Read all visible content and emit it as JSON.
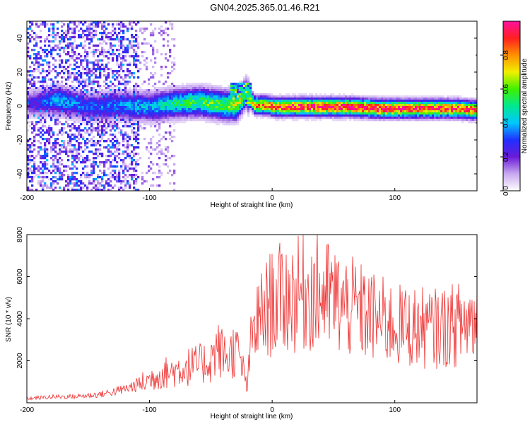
{
  "title": "GN04.2025.365.01.46.R21",
  "chart_data": [
    {
      "type": "heatmap",
      "xlabel": "Height of straight line (km)",
      "ylabel": "Frequency (Hz)",
      "xlim": [
        -200,
        167
      ],
      "ylim": [
        -50,
        50
      ],
      "xticks": [
        -200,
        -100,
        0,
        100
      ],
      "yticks": [
        -40,
        -20,
        0,
        20,
        40
      ],
      "colorbar": {
        "label": "Normalized spectral amplitude",
        "range": [
          0,
          1
        ],
        "ticks": [
          "0.0",
          "0.2",
          "0.4",
          "0.6",
          "0.8"
        ],
        "colormap": [
          "#ffffff",
          "#c8a8f0",
          "#6a1bd8",
          "#2030ff",
          "#00c8ff",
          "#00e890",
          "#40f000",
          "#f0f000",
          "#ff9000",
          "#ff2020",
          "#ff10a0"
        ]
      },
      "ridge": {
        "description_free_values": true,
        "x": [
          -200,
          -175,
          -150,
          -125,
          -100,
          -80,
          -60,
          -40,
          -30,
          -22,
          -15,
          -5,
          0,
          10,
          30,
          60,
          90,
          120,
          150,
          167
        ],
        "center_hz": [
          2,
          4,
          0,
          1,
          0,
          2,
          3,
          1,
          1,
          8,
          1,
          1,
          0,
          0,
          0,
          0,
          -1,
          -1,
          -1,
          -2
        ],
        "peak_amplitude": [
          0.2,
          0.4,
          0.3,
          0.35,
          0.4,
          0.5,
          0.55,
          0.6,
          0.65,
          0.5,
          0.8,
          0.85,
          0.9,
          0.9,
          0.95,
          0.95,
          0.95,
          0.9,
          0.9,
          0.85
        ]
      }
    },
    {
      "type": "line",
      "xlabel": "Height of straight line (km)",
      "ylabel": "SNR (10 * v/v)",
      "xlim": [
        -200,
        167
      ],
      "ylim": [
        0,
        8000
      ],
      "xticks": [
        -200,
        -100,
        0,
        100
      ],
      "yticks": [
        2000,
        4000,
        6000,
        8000
      ],
      "color": "#ee3030",
      "series": [
        {
          "x": [
            -200,
            -180,
            -160,
            -140,
            -120,
            -110,
            -100,
            -90,
            -80,
            -70,
            -60,
            -50,
            -45,
            -40,
            -35,
            -30,
            -25,
            -20,
            -18,
            -15,
            -10,
            0,
            10,
            20,
            30,
            40,
            50,
            60,
            70,
            80,
            90,
            100,
            110,
            120,
            130,
            140,
            150,
            160,
            167
          ],
          "values": [
            200,
            280,
            300,
            400,
            650,
            850,
            1100,
            1400,
            1500,
            1700,
            1800,
            2000,
            2600,
            2300,
            2200,
            2600,
            1800,
            700,
            2500,
            3500,
            4000,
            4800,
            5000,
            5100,
            5300,
            5200,
            4900,
            4600,
            4400,
            4100,
            3900,
            3700,
            3600,
            3600,
            3500,
            3600,
            3700,
            3900,
            4000
          ]
        }
      ]
    }
  ]
}
